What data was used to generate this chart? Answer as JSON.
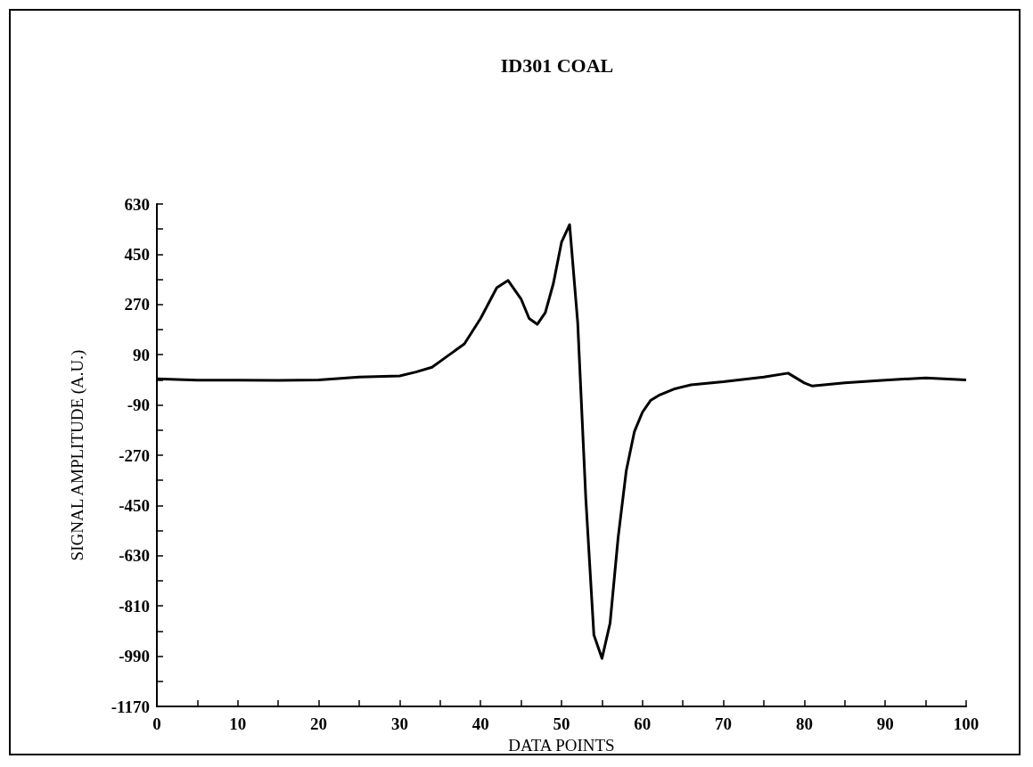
{
  "chart_data": {
    "type": "line",
    "title": "ID301 COAL",
    "xlabel": "DATA POINTS",
    "ylabel": "SIGNAL AMPLITUDE (A.U.)",
    "x": [
      0,
      5,
      10,
      15,
      20,
      25,
      30,
      32,
      34,
      36,
      38,
      40,
      42,
      43.4,
      45,
      46,
      47,
      48,
      49,
      50,
      51,
      52,
      53,
      54,
      55,
      56,
      57,
      58,
      59,
      60,
      61,
      62,
      64,
      66,
      70,
      75,
      78,
      80,
      81,
      85,
      90,
      95,
      100
    ],
    "series": [
      {
        "color": "#000000",
        "values": [
          4,
          -1,
          -1,
          -2,
          0,
          10,
          14,
          28,
          45,
          87,
          129,
          220,
          330,
          356,
          290,
          220,
          199,
          241,
          346,
          493,
          556,
          206,
          -424,
          -914,
          -998,
          -872,
          -564,
          -326,
          -186,
          -116,
          -74,
          -56,
          -32,
          -18,
          -7,
          10,
          24,
          -11,
          -22,
          -11,
          -1,
          7,
          0
        ]
      }
    ],
    "xlim": [
      0,
      100
    ],
    "xticks": [
      0,
      {
        "value": 5,
        "label": null
      },
      10,
      {
        "value": 15,
        "label": null
      },
      20,
      {
        "value": 25,
        "label": null
      },
      30,
      {
        "value": 35,
        "label": null
      },
      40,
      {
        "value": 45,
        "label": null
      },
      50,
      {
        "value": 55,
        "label": null
      },
      60,
      {
        "value": 65,
        "label": null
      },
      70,
      {
        "value": 75,
        "label": null
      },
      80,
      {
        "value": 85,
        "label": null
      },
      90,
      {
        "value": 95,
        "label": null
      },
      100
    ],
    "ylim": [
      -1170,
      630
    ],
    "yticks": [
      -1170,
      {
        "value": -1080,
        "label": null
      },
      -990,
      {
        "value": -900,
        "label": null
      },
      -810,
      {
        "value": -720,
        "label": null
      },
      -630,
      {
        "value": -540,
        "label": null
      },
      -450,
      {
        "value": -360,
        "label": null
      },
      -270,
      {
        "value": -180,
        "label": null
      },
      -90,
      {
        "value": 0,
        "label": null
      },
      90,
      {
        "value": 180,
        "label": null
      },
      270,
      {
        "value": 360,
        "label": null
      },
      450,
      {
        "value": 540,
        "label": null
      },
      630
    ],
    "grid": false,
    "marker": "none",
    "line_style": "solid"
  }
}
